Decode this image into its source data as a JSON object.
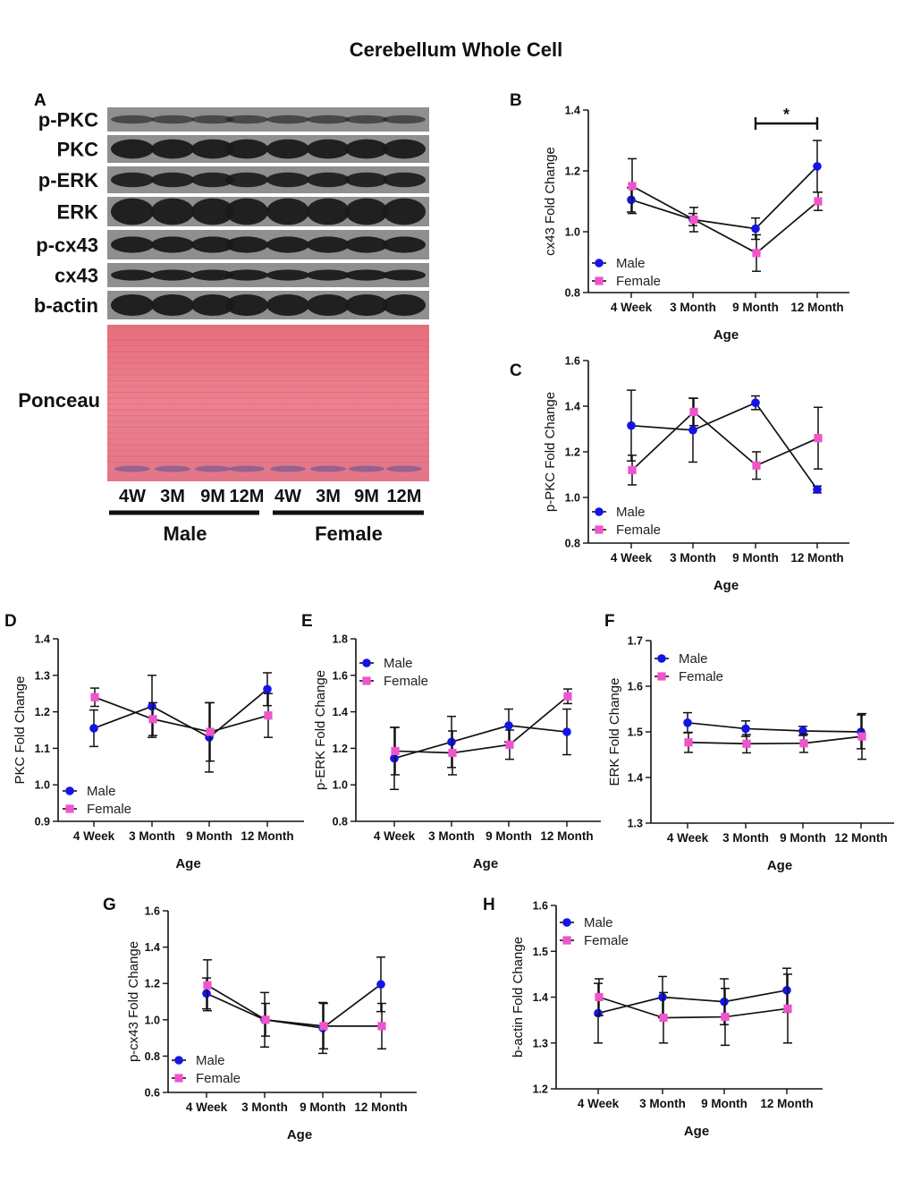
{
  "figure_title": "Cerebellum Whole Cell",
  "colors": {
    "male": "#1414e6",
    "female": "#ee55cc",
    "line": "#111111",
    "ponceau": "#e3707e",
    "blot_bg": "#8f8f8f",
    "band": "#1a1a1a"
  },
  "blot": {
    "panel_label": "A",
    "rows": [
      "p-PKC",
      "PKC",
      "p-ERK",
      "ERK",
      "p-cx43",
      "cx43",
      "b-actin"
    ],
    "ponceau_label": "Ponceau",
    "lanes": [
      "4W",
      "3M",
      "9M",
      "12M",
      "4W",
      "3M",
      "9M",
      "12M"
    ],
    "groups": [
      "Male",
      "Female"
    ]
  },
  "chart_data": [
    {
      "type": "line",
      "panel": "B",
      "ylabel": "cx43 Fold Change",
      "xlabel": "Age",
      "categories": [
        "4 Week",
        "3 Month",
        "9 Month",
        "12 Month"
      ],
      "ylim": [
        0.8,
        1.4
      ],
      "yticks": [
        "0.8",
        "1.0",
        "1.2",
        "1.4"
      ],
      "legend": "bottom-left",
      "annotation": "*",
      "series": [
        {
          "name": "Male",
          "values": [
            1.105,
            1.04,
            1.01,
            1.215
          ],
          "errors": [
            0.04,
            0.02,
            0.035,
            0.085
          ]
        },
        {
          "name": "Female",
          "values": [
            1.15,
            1.04,
            0.93,
            1.1
          ],
          "errors": [
            0.09,
            0.04,
            0.06,
            0.03
          ]
        }
      ]
    },
    {
      "type": "line",
      "panel": "C",
      "ylabel": "p-PKC Fold Change",
      "xlabel": "Age",
      "categories": [
        "4 Week",
        "3 Month",
        "9 Month",
        "12 Month"
      ],
      "ylim": [
        0.8,
        1.6
      ],
      "yticks": [
        "0.8",
        "1.0",
        "1.2",
        "1.4",
        "1.6"
      ],
      "legend": "bottom-left",
      "series": [
        {
          "name": "Male",
          "values": [
            1.315,
            1.295,
            1.415,
            1.035
          ],
          "errors": [
            0.155,
            0.14,
            0.03,
            0.015
          ]
        },
        {
          "name": "Female",
          "values": [
            1.12,
            1.375,
            1.14,
            1.26
          ],
          "errors": [
            0.065,
            0.06,
            0.06,
            0.135
          ]
        }
      ]
    },
    {
      "type": "line",
      "panel": "D",
      "ylabel": "PKC Fold Change",
      "xlabel": "Age",
      "categories": [
        "4 Week",
        "3 Month",
        "9 Month",
        "12 Month"
      ],
      "ylim": [
        0.9,
        1.4
      ],
      "yticks": [
        "0.9",
        "1.0",
        "1.1",
        "1.2",
        "1.3",
        "1.4"
      ],
      "legend": "bottom-left",
      "series": [
        {
          "name": "Male",
          "values": [
            1.155,
            1.215,
            1.13,
            1.262
          ],
          "errors": [
            0.05,
            0.085,
            0.095,
            0.045
          ]
        },
        {
          "name": "Female",
          "values": [
            1.24,
            1.18,
            1.145,
            1.19
          ],
          "errors": [
            0.025,
            0.045,
            0.08,
            0.06
          ]
        }
      ]
    },
    {
      "type": "line",
      "panel": "E",
      "ylabel": "p-ERK Fold Change",
      "xlabel": "Age",
      "categories": [
        "4 Week",
        "3 Month",
        "9 Month",
        "12 Month"
      ],
      "ylim": [
        0.8,
        1.8
      ],
      "yticks": [
        "0.8",
        "1.0",
        "1.2",
        "1.4",
        "1.6",
        "1.8"
      ],
      "legend": "top-left",
      "series": [
        {
          "name": "Male",
          "values": [
            1.145,
            1.235,
            1.325,
            1.29
          ],
          "errors": [
            0.17,
            0.14,
            0.09,
            0.125
          ]
        },
        {
          "name": "Female",
          "values": [
            1.185,
            1.175,
            1.22,
            1.485
          ],
          "errors": [
            0.13,
            0.12,
            0.08,
            0.04
          ]
        }
      ]
    },
    {
      "type": "line",
      "panel": "F",
      "ylabel": "ERK Fold Change",
      "xlabel": "Age",
      "categories": [
        "4 Week",
        "3 Month",
        "9 Month",
        "12 Month"
      ],
      "ylim": [
        1.3,
        1.7
      ],
      "yticks": [
        "1.3",
        "1.4",
        "1.5",
        "1.6",
        "1.7"
      ],
      "legend": "top-left",
      "series": [
        {
          "name": "Male",
          "values": [
            1.52,
            1.507,
            1.502,
            1.5
          ],
          "errors": [
            0.022,
            0.017,
            0.01,
            0.037
          ]
        },
        {
          "name": "Female",
          "values": [
            1.477,
            1.474,
            1.475,
            1.49
          ],
          "errors": [
            0.022,
            0.02,
            0.02,
            0.05
          ]
        }
      ]
    },
    {
      "type": "line",
      "panel": "G",
      "ylabel": "p-cx43 Fold Change",
      "xlabel": "Age",
      "categories": [
        "4 Week",
        "3 Month",
        "9 Month",
        "12 Month"
      ],
      "ylim": [
        0.6,
        1.6
      ],
      "yticks": [
        "0.6",
        "0.8",
        "1.0",
        "1.2",
        "1.4",
        "1.6"
      ],
      "legend": "bottom-left",
      "series": [
        {
          "name": "Male",
          "values": [
            1.145,
            1.0,
            0.955,
            1.195
          ],
          "errors": [
            0.085,
            0.15,
            0.14,
            0.15
          ]
        },
        {
          "name": "Female",
          "values": [
            1.19,
            1.0,
            0.965,
            0.965
          ],
          "errors": [
            0.14,
            0.09,
            0.125,
            0.125
          ]
        }
      ]
    },
    {
      "type": "line",
      "panel": "H",
      "ylabel": "b-actin Fold Change",
      "xlabel": "Age",
      "categories": [
        "4 Week",
        "3 Month",
        "9 Month",
        "12 Month"
      ],
      "ylim": [
        1.2,
        1.6
      ],
      "yticks": [
        "1.2",
        "1.3",
        "1.4",
        "1.5",
        "1.6"
      ],
      "legend": "top-left",
      "series": [
        {
          "name": "Male",
          "values": [
            1.365,
            1.4,
            1.39,
            1.415
          ],
          "errors": [
            0.065,
            0.045,
            0.05,
            0.048
          ]
        },
        {
          "name": "Female",
          "values": [
            1.4,
            1.355,
            1.357,
            1.375
          ],
          "errors": [
            0.04,
            0.055,
            0.062,
            0.075
          ]
        }
      ]
    }
  ]
}
